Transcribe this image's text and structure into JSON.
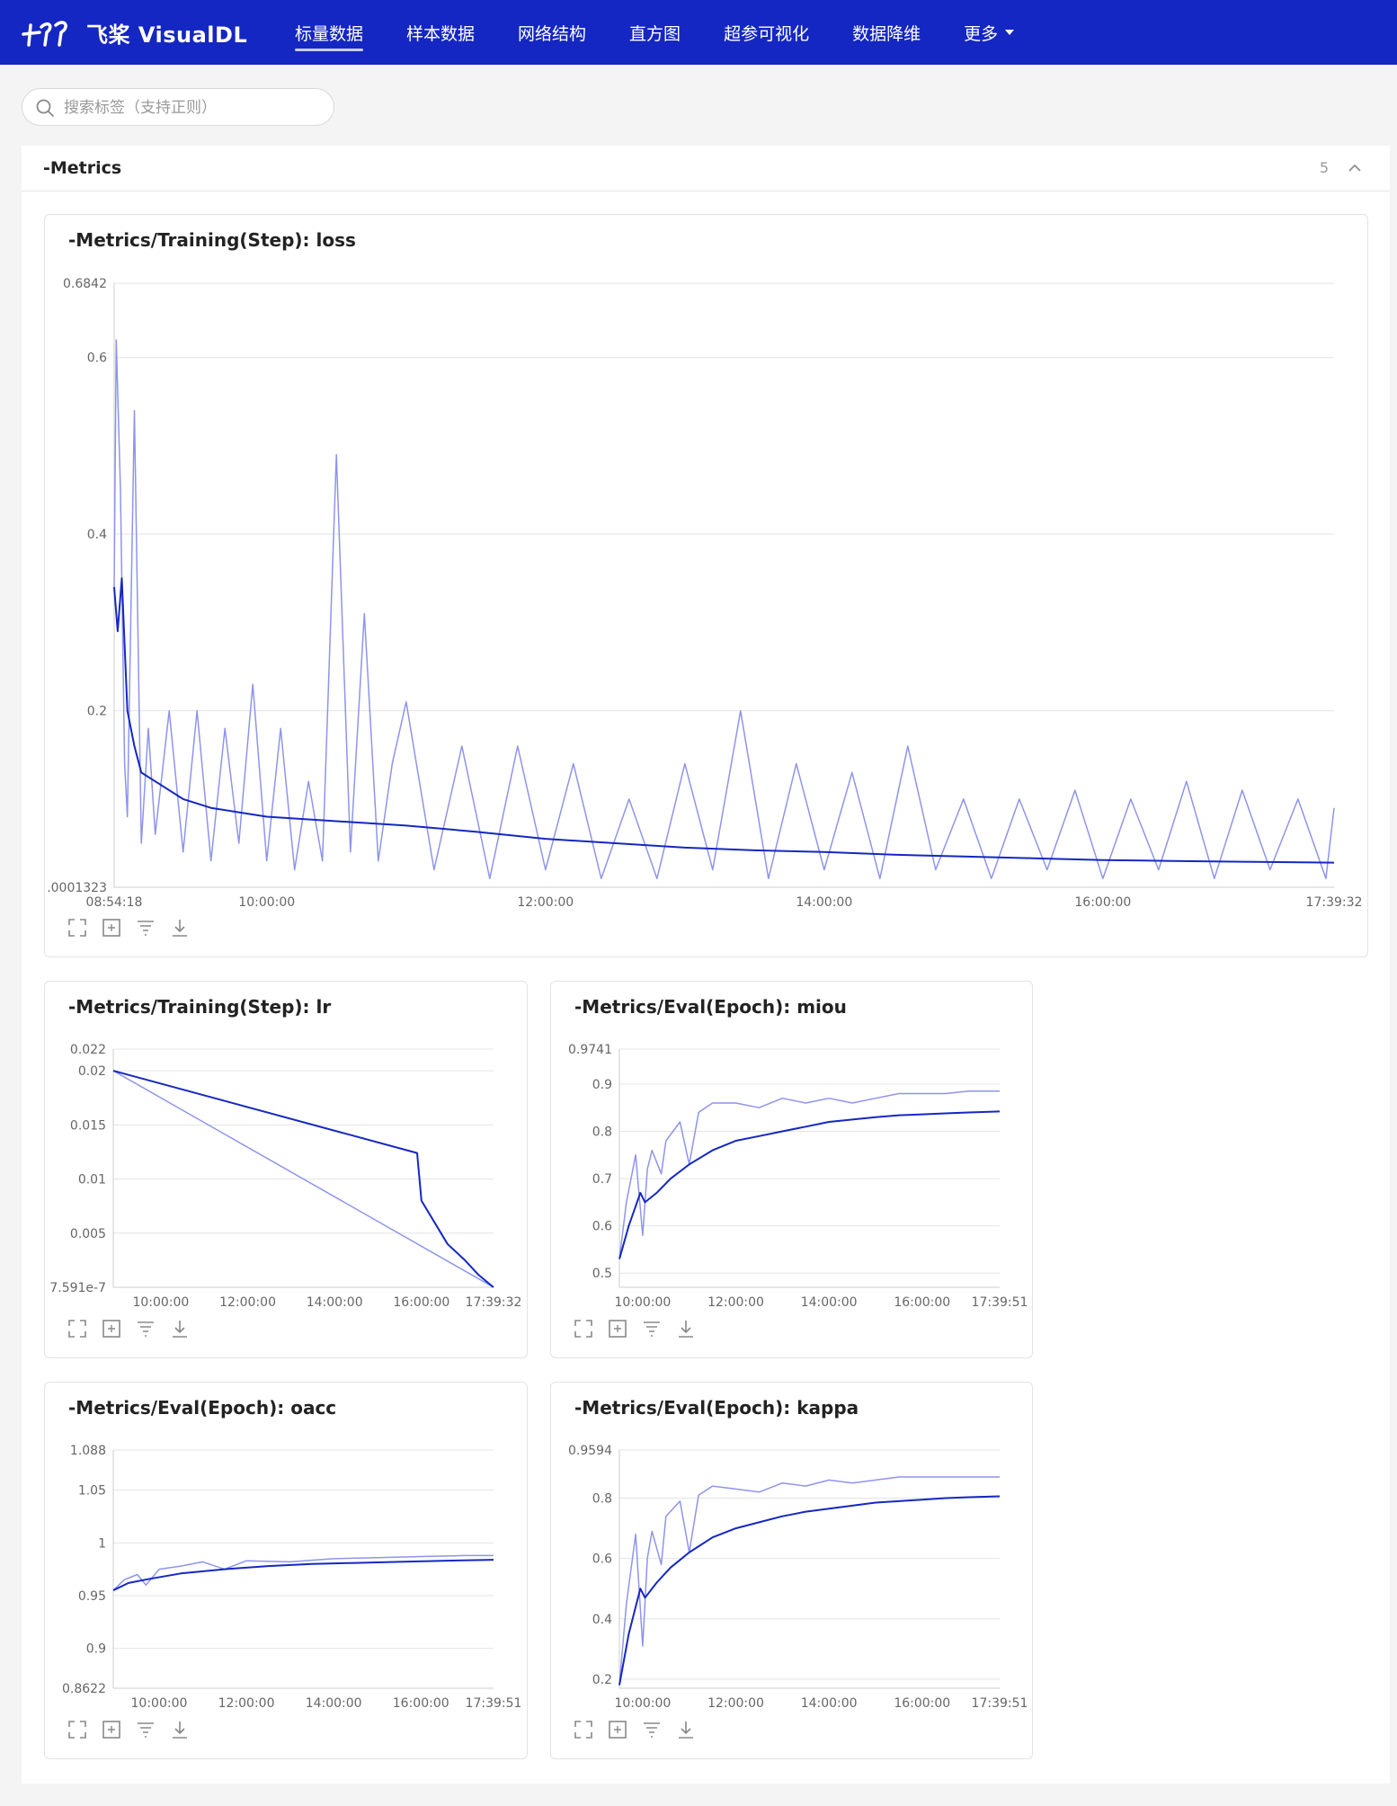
{
  "header": {
    "brand": "飞桨 VisualDL",
    "nav": [
      {
        "label": "标量数据",
        "active": true
      },
      {
        "label": "样本数据"
      },
      {
        "label": "网络结构"
      },
      {
        "label": "直方图"
      },
      {
        "label": "超参可视化"
      },
      {
        "label": "数据降维"
      },
      {
        "label": "更多"
      }
    ]
  },
  "search": {
    "placeholder": "搜索标签（支持正则）",
    "value": ""
  },
  "group": {
    "title": "-Metrics",
    "count": "5"
  },
  "icons": [
    "expand-icon",
    "reset-zoom-icon",
    "filter-icon",
    "download-icon"
  ],
  "chart_data": [
    {
      "type": "line",
      "title": "-Metrics/Training(Step): loss",
      "yticks": [
        "0.6842",
        "0.6",
        "0.4",
        "0.2",
        ".0001323"
      ],
      "ytick_values": [
        0.6842,
        0.6,
        0.4,
        0.2,
        0.0001323
      ],
      "xticks": [
        "08:54:18",
        "10:00:00",
        "12:00:00",
        "14:00:00",
        "16:00:00",
        "17:39:32"
      ],
      "xtick_values": [
        8.905,
        10,
        12,
        14,
        16,
        17.659
      ],
      "xlim": [
        8.905,
        17.659
      ],
      "ylim": [
        0.0001323,
        0.6842
      ],
      "series": [
        {
          "values": [
            [
              8.905,
              0.34
            ],
            [
              8.92,
              0.62
            ],
            [
              8.95,
              0.45
            ],
            [
              8.98,
              0.14
            ],
            [
              9.0,
              0.08
            ],
            [
              9.05,
              0.54
            ],
            [
              9.1,
              0.05
            ],
            [
              9.15,
              0.18
            ],
            [
              9.2,
              0.06
            ],
            [
              9.3,
              0.2
            ],
            [
              9.4,
              0.04
            ],
            [
              9.5,
              0.2
            ],
            [
              9.6,
              0.03
            ],
            [
              9.7,
              0.18
            ],
            [
              9.8,
              0.05
            ],
            [
              9.9,
              0.23
            ],
            [
              10.0,
              0.03
            ],
            [
              10.1,
              0.18
            ],
            [
              10.2,
              0.02
            ],
            [
              10.3,
              0.12
            ],
            [
              10.4,
              0.03
            ],
            [
              10.5,
              0.49
            ],
            [
              10.6,
              0.04
            ],
            [
              10.7,
              0.31
            ],
            [
              10.8,
              0.03
            ],
            [
              10.9,
              0.14
            ],
            [
              11.0,
              0.21
            ],
            [
              11.2,
              0.02
            ],
            [
              11.4,
              0.16
            ],
            [
              11.6,
              0.01
            ],
            [
              11.8,
              0.16
            ],
            [
              12.0,
              0.02
            ],
            [
              12.2,
              0.14
            ],
            [
              12.4,
              0.01
            ],
            [
              12.6,
              0.1
            ],
            [
              12.8,
              0.01
            ],
            [
              13.0,
              0.14
            ],
            [
              13.2,
              0.02
            ],
            [
              13.4,
              0.2
            ],
            [
              13.6,
              0.01
            ],
            [
              13.8,
              0.14
            ],
            [
              14.0,
              0.02
            ],
            [
              14.2,
              0.13
            ],
            [
              14.4,
              0.01
            ],
            [
              14.6,
              0.16
            ],
            [
              14.8,
              0.02
            ],
            [
              15.0,
              0.1
            ],
            [
              15.2,
              0.01
            ],
            [
              15.4,
              0.1
            ],
            [
              15.6,
              0.02
            ],
            [
              15.8,
              0.11
            ],
            [
              16.0,
              0.01
            ],
            [
              16.2,
              0.1
            ],
            [
              16.4,
              0.02
            ],
            [
              16.6,
              0.12
            ],
            [
              16.8,
              0.01
            ],
            [
              17.0,
              0.11
            ],
            [
              17.2,
              0.02
            ],
            [
              17.4,
              0.1
            ],
            [
              17.6,
              0.01
            ],
            [
              17.659,
              0.09
            ]
          ]
        },
        {
          "values": [
            [
              8.905,
              0.34
            ],
            [
              8.93,
              0.29
            ],
            [
              8.96,
              0.35
            ],
            [
              9.0,
              0.2
            ],
            [
              9.05,
              0.16
            ],
            [
              9.1,
              0.13
            ],
            [
              9.2,
              0.12
            ],
            [
              9.4,
              0.1
            ],
            [
              9.6,
              0.09
            ],
            [
              9.8,
              0.085
            ],
            [
              10.0,
              0.08
            ],
            [
              10.5,
              0.075
            ],
            [
              11.0,
              0.07
            ],
            [
              11.5,
              0.063
            ],
            [
              12.0,
              0.055
            ],
            [
              12.5,
              0.05
            ],
            [
              13.0,
              0.045
            ],
            [
              13.5,
              0.042
            ],
            [
              14.0,
              0.04
            ],
            [
              14.5,
              0.037
            ],
            [
              15.0,
              0.035
            ],
            [
              15.5,
              0.033
            ],
            [
              16.0,
              0.031
            ],
            [
              16.5,
              0.03
            ],
            [
              17.0,
              0.029
            ],
            [
              17.659,
              0.028
            ]
          ]
        }
      ]
    },
    {
      "type": "line",
      "title": "-Metrics/Training(Step): lr",
      "yticks": [
        "0.022",
        "0.02",
        "0.015",
        "0.01",
        "0.005",
        "7.591e-7"
      ],
      "ytick_values": [
        0.022,
        0.02,
        0.015,
        0.01,
        0.005,
        7.591e-07
      ],
      "xticks": [
        "10:00:00",
        "12:00:00",
        "14:00:00",
        "16:00:00",
        "17:39:32"
      ],
      "xtick_values": [
        10,
        12,
        14,
        16,
        17.659
      ],
      "xlim": [
        8.905,
        17.659
      ],
      "ylim": [
        7.591e-07,
        0.022
      ],
      "series": [
        {
          "values": [
            [
              8.905,
              0.02
            ],
            [
              17.659,
              7.591e-07
            ]
          ]
        },
        {
          "values": [
            [
              8.905,
              0.02
            ],
            [
              15.9,
              0.0124
            ],
            [
              16.0,
              0.008
            ],
            [
              16.3,
              0.006
            ],
            [
              16.6,
              0.004
            ],
            [
              17.0,
              0.0025
            ],
            [
              17.3,
              0.0012
            ],
            [
              17.659,
              7.591e-07
            ]
          ]
        }
      ]
    },
    {
      "type": "line",
      "title": "-Metrics/Eval(Epoch): miou",
      "yticks": [
        "0.9741",
        "0.9",
        "0.8",
        "0.7",
        "0.6",
        "0.5"
      ],
      "ytick_values": [
        0.9741,
        0.9,
        0.8,
        0.7,
        0.6,
        0.5
      ],
      "xticks": [
        "10:00:00",
        "12:00:00",
        "14:00:00",
        "16:00:00",
        "17:39:51"
      ],
      "xtick_values": [
        10,
        12,
        14,
        16,
        17.664
      ],
      "xlim": [
        9.5,
        17.664
      ],
      "ylim": [
        0.47,
        0.9741
      ],
      "series": [
        {
          "values": [
            [
              9.5,
              0.53
            ],
            [
              9.65,
              0.65
            ],
            [
              9.85,
              0.75
            ],
            [
              10.0,
              0.58
            ],
            [
              10.1,
              0.72
            ],
            [
              10.2,
              0.76
            ],
            [
              10.4,
              0.71
            ],
            [
              10.5,
              0.78
            ],
            [
              10.8,
              0.82
            ],
            [
              11.0,
              0.73
            ],
            [
              11.2,
              0.84
            ],
            [
              11.5,
              0.86
            ],
            [
              12.0,
              0.86
            ],
            [
              12.5,
              0.85
            ],
            [
              13.0,
              0.87
            ],
            [
              13.5,
              0.86
            ],
            [
              14.0,
              0.87
            ],
            [
              14.5,
              0.86
            ],
            [
              15.0,
              0.87
            ],
            [
              15.5,
              0.88
            ],
            [
              16.0,
              0.88
            ],
            [
              16.5,
              0.88
            ],
            [
              17.0,
              0.885
            ],
            [
              17.664,
              0.885
            ]
          ]
        },
        {
          "values": [
            [
              9.5,
              0.53
            ],
            [
              9.7,
              0.6
            ],
            [
              9.95,
              0.67
            ],
            [
              10.05,
              0.65
            ],
            [
              10.3,
              0.67
            ],
            [
              10.6,
              0.7
            ],
            [
              11.0,
              0.73
            ],
            [
              11.5,
              0.76
            ],
            [
              12.0,
              0.78
            ],
            [
              12.5,
              0.79
            ],
            [
              13.0,
              0.8
            ],
            [
              13.5,
              0.81
            ],
            [
              14.0,
              0.82
            ],
            [
              14.5,
              0.825
            ],
            [
              15.0,
              0.83
            ],
            [
              15.5,
              0.834
            ],
            [
              16.0,
              0.836
            ],
            [
              16.5,
              0.838
            ],
            [
              17.0,
              0.84
            ],
            [
              17.664,
              0.842
            ]
          ]
        }
      ]
    },
    {
      "type": "line",
      "title": "-Metrics/Eval(Epoch): oacc",
      "yticks": [
        "1.088",
        "1.05",
        "1",
        "0.95",
        "0.9",
        "0.8622"
      ],
      "ytick_values": [
        1.088,
        1.05,
        1,
        0.95,
        0.9,
        0.8622
      ],
      "xticks": [
        "10:00:00",
        "12:00:00",
        "14:00:00",
        "16:00:00",
        "17:39:51"
      ],
      "xtick_values": [
        10,
        12,
        14,
        16,
        17.664
      ],
      "xlim": [
        8.95,
        17.664
      ],
      "ylim": [
        0.8622,
        1.088
      ],
      "series": [
        {
          "values": [
            [
              8.95,
              0.955
            ],
            [
              9.2,
              0.965
            ],
            [
              9.5,
              0.97
            ],
            [
              9.7,
              0.96
            ],
            [
              10.0,
              0.975
            ],
            [
              10.5,
              0.978
            ],
            [
              11.0,
              0.982
            ],
            [
              11.5,
              0.975
            ],
            [
              12.0,
              0.983
            ],
            [
              13.0,
              0.982
            ],
            [
              14.0,
              0.985
            ],
            [
              15.0,
              0.986
            ],
            [
              16.0,
              0.987
            ],
            [
              17.0,
              0.988
            ],
            [
              17.664,
              0.988
            ]
          ]
        },
        {
          "values": [
            [
              8.95,
              0.955
            ],
            [
              9.3,
              0.962
            ],
            [
              9.8,
              0.966
            ],
            [
              10.5,
              0.971
            ],
            [
              11.5,
              0.975
            ],
            [
              12.5,
              0.978
            ],
            [
              13.5,
              0.98
            ],
            [
              14.5,
              0.981
            ],
            [
              15.5,
              0.982
            ],
            [
              16.5,
              0.983
            ],
            [
              17.664,
              0.984
            ]
          ]
        }
      ]
    },
    {
      "type": "line",
      "title": "-Metrics/Eval(Epoch): kappa",
      "yticks": [
        "0.9594",
        "0.8",
        "0.6",
        "0.4",
        "0.2"
      ],
      "ytick_values": [
        0.9594,
        0.8,
        0.6,
        0.4,
        0.2
      ],
      "xticks": [
        "10:00:00",
        "12:00:00",
        "14:00:00",
        "16:00:00",
        "17:39:51"
      ],
      "xtick_values": [
        10,
        12,
        14,
        16,
        17.664
      ],
      "xlim": [
        9.5,
        17.664
      ],
      "ylim": [
        0.17,
        0.9594
      ],
      "series": [
        {
          "values": [
            [
              9.5,
              0.18
            ],
            [
              9.65,
              0.45
            ],
            [
              9.85,
              0.68
            ],
            [
              10.0,
              0.31
            ],
            [
              10.1,
              0.6
            ],
            [
              10.2,
              0.69
            ],
            [
              10.4,
              0.58
            ],
            [
              10.5,
              0.74
            ],
            [
              10.8,
              0.79
            ],
            [
              11.0,
              0.62
            ],
            [
              11.2,
              0.81
            ],
            [
              11.5,
              0.84
            ],
            [
              12.0,
              0.83
            ],
            [
              12.5,
              0.82
            ],
            [
              13.0,
              0.85
            ],
            [
              13.5,
              0.84
            ],
            [
              14.0,
              0.86
            ],
            [
              14.5,
              0.85
            ],
            [
              15.0,
              0.86
            ],
            [
              15.5,
              0.87
            ],
            [
              16.0,
              0.87
            ],
            [
              16.5,
              0.87
            ],
            [
              17.0,
              0.87
            ],
            [
              17.664,
              0.87
            ]
          ]
        },
        {
          "values": [
            [
              9.5,
              0.18
            ],
            [
              9.7,
              0.35
            ],
            [
              9.95,
              0.5
            ],
            [
              10.05,
              0.47
            ],
            [
              10.3,
              0.52
            ],
            [
              10.6,
              0.57
            ],
            [
              11.0,
              0.62
            ],
            [
              11.5,
              0.67
            ],
            [
              12.0,
              0.7
            ],
            [
              12.5,
              0.72
            ],
            [
              13.0,
              0.74
            ],
            [
              13.5,
              0.755
            ],
            [
              14.0,
              0.765
            ],
            [
              14.5,
              0.775
            ],
            [
              15.0,
              0.785
            ],
            [
              15.5,
              0.79
            ],
            [
              16.0,
              0.795
            ],
            [
              16.5,
              0.8
            ],
            [
              17.0,
              0.803
            ],
            [
              17.664,
              0.806
            ]
          ]
        }
      ]
    }
  ]
}
